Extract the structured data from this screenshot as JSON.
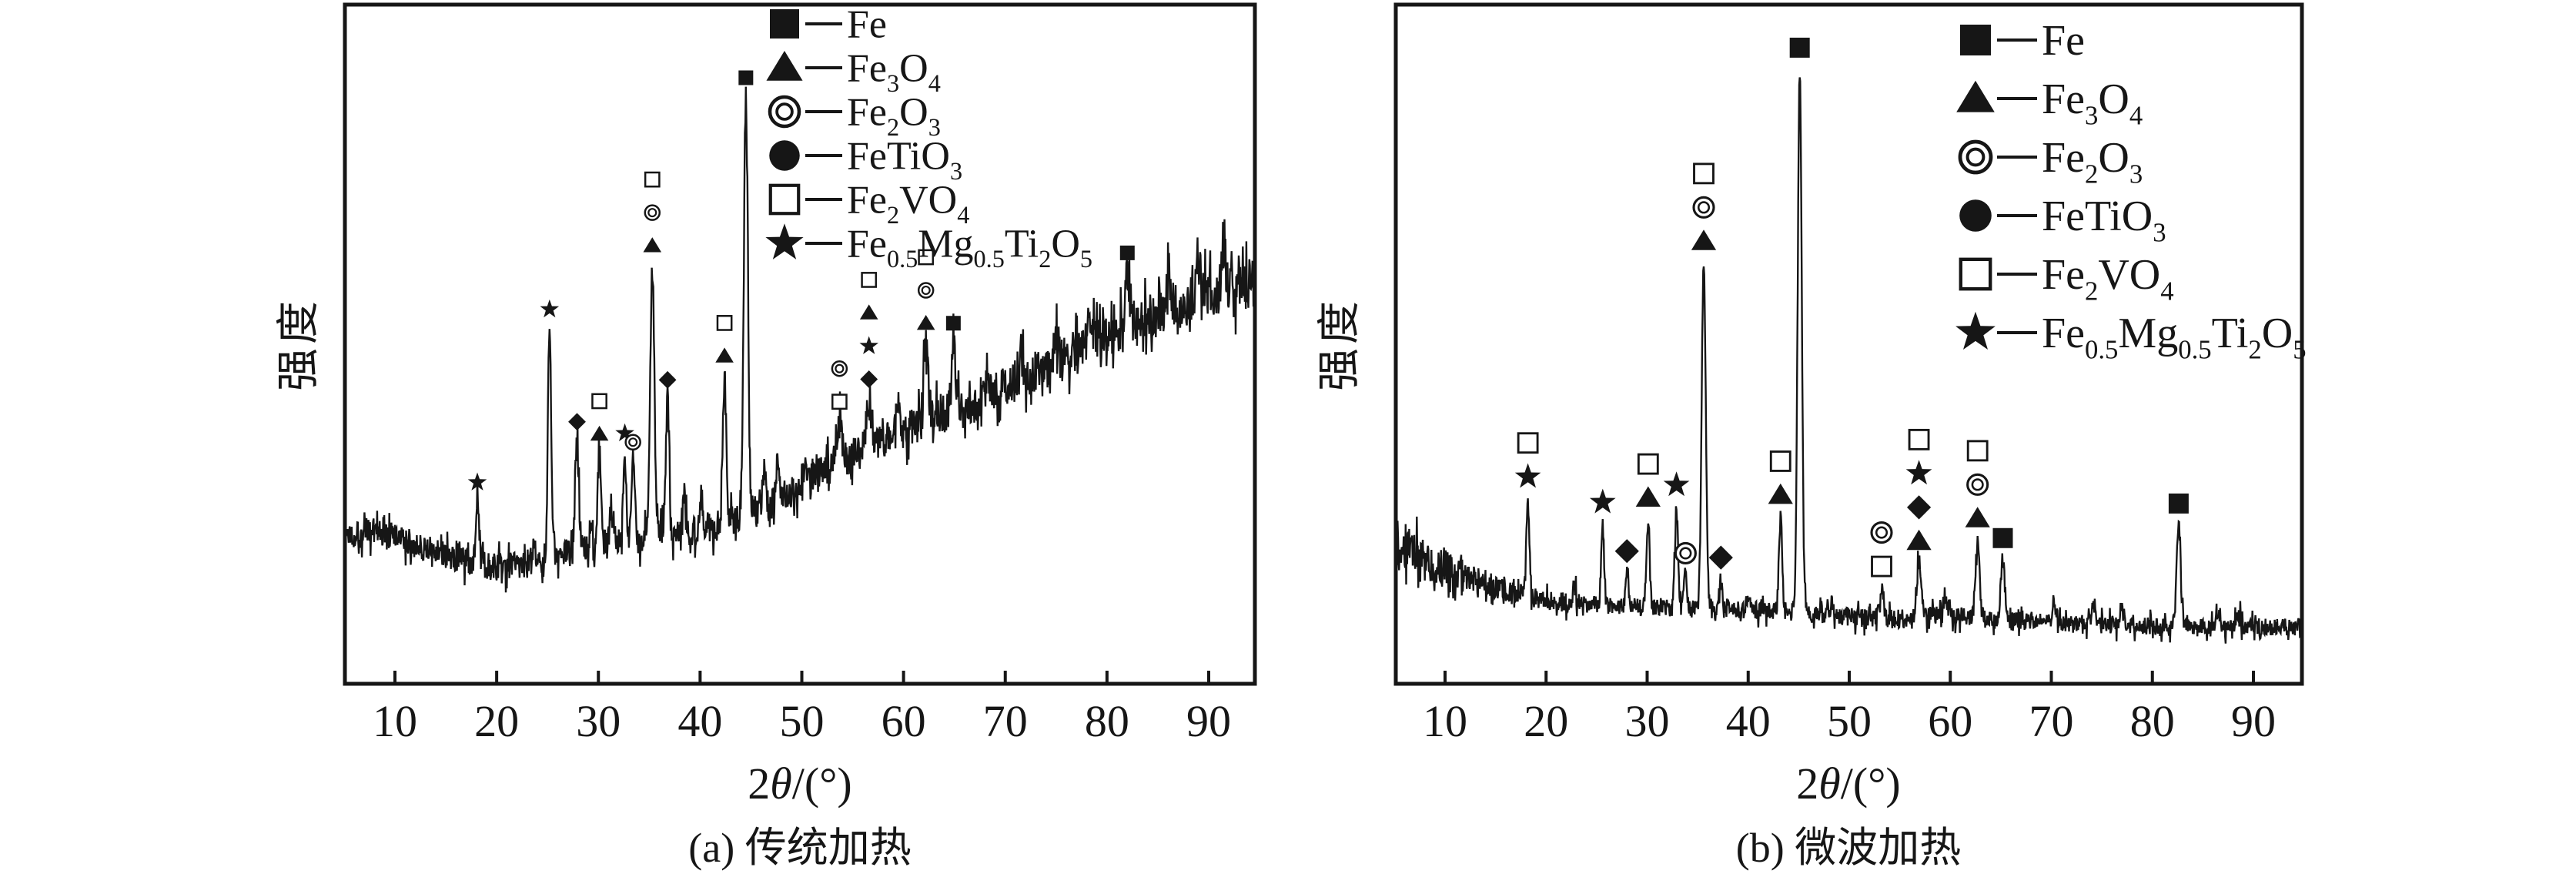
{
  "figure_type": "XRD patterns of roasted vanadium-titanium magnetite, two heating methods",
  "colors": {
    "ink": "#161616",
    "background": "#ffffff"
  },
  "legend_phases": [
    {
      "marker": "filled-square",
      "plot_marker": "filled-square",
      "label_plain": "Fe",
      "formula": [
        [
          "Fe",
          false
        ]
      ]
    },
    {
      "marker": "filled-triangle",
      "plot_marker": "filled-triangle",
      "label_plain": "Fe3O4",
      "formula": [
        [
          "Fe",
          false
        ],
        [
          "3",
          true
        ],
        [
          "O",
          false
        ],
        [
          "4",
          true
        ]
      ]
    },
    {
      "marker": "double-ring",
      "plot_marker": "double-ring",
      "label_plain": "Fe2O3",
      "formula": [
        [
          "Fe",
          false
        ],
        [
          "2",
          true
        ],
        [
          "O",
          false
        ],
        [
          "3",
          true
        ]
      ]
    },
    {
      "marker": "filled-circle",
      "plot_marker": "filled-diamond",
      "label_plain": "FeTiO3",
      "formula": [
        [
          "FeTiO",
          false
        ],
        [
          "3",
          true
        ]
      ]
    },
    {
      "marker": "open-square",
      "plot_marker": "open-square",
      "label_plain": "Fe2VO4",
      "formula": [
        [
          "Fe",
          false
        ],
        [
          "2",
          true
        ],
        [
          "VO",
          false
        ],
        [
          "4",
          true
        ]
      ]
    },
    {
      "marker": "filled-star",
      "plot_marker": "filled-star",
      "label_plain": "Fe0.5Mg0.5Ti2O5",
      "formula": [
        [
          "Fe",
          false
        ],
        [
          "0.5",
          true
        ],
        [
          "Mg",
          false
        ],
        [
          "0.5",
          true
        ],
        [
          "Ti",
          false
        ],
        [
          "2",
          true
        ],
        [
          "O",
          false
        ],
        [
          "5",
          true
        ]
      ]
    }
  ],
  "chart_data": [
    {
      "panel": "a",
      "type": "line",
      "title": "(a) 传统加热",
      "ylabel": "强度",
      "x_label": {
        "pre": "2",
        "theta": "θ",
        "post": "/(°)"
      },
      "x_ticks": [
        10,
        20,
        30,
        40,
        50,
        60,
        70,
        80,
        90
      ],
      "x_range": [
        5.1,
        94.5
      ],
      "y_axis": "intensity, arbitrary units, no tick labels",
      "grid": false,
      "legend_position": "inside top, right of center",
      "noise_seed": 1337,
      "background_anchors": [
        [
          5,
          0.22
        ],
        [
          8,
          0.225
        ],
        [
          11,
          0.21
        ],
        [
          14,
          0.195
        ],
        [
          17,
          0.18
        ],
        [
          20,
          0.172
        ],
        [
          23,
          0.178
        ],
        [
          26,
          0.19
        ],
        [
          29,
          0.2
        ],
        [
          32,
          0.208
        ],
        [
          35,
          0.215
        ],
        [
          38,
          0.22
        ],
        [
          41,
          0.232
        ],
        [
          44,
          0.245
        ],
        [
          47,
          0.262
        ],
        [
          50,
          0.295
        ],
        [
          53,
          0.32
        ],
        [
          56,
          0.345
        ],
        [
          59,
          0.365
        ],
        [
          62,
          0.385
        ],
        [
          65,
          0.402
        ],
        [
          68,
          0.42
        ],
        [
          71,
          0.445
        ],
        [
          74,
          0.462
        ],
        [
          77,
          0.49
        ],
        [
          80,
          0.515
        ],
        [
          83,
          0.53
        ],
        [
          86,
          0.55
        ],
        [
          89,
          0.57
        ],
        [
          92,
          0.582
        ],
        [
          94.5,
          0.59
        ]
      ],
      "noise_anchors": [
        [
          5,
          0.022
        ],
        [
          15,
          0.02
        ],
        [
          30,
          0.022
        ],
        [
          45,
          0.024
        ],
        [
          60,
          0.028
        ],
        [
          75,
          0.032
        ],
        [
          94.5,
          0.038
        ]
      ],
      "peaks": [
        {
          "two_theta": 18.1,
          "intensity": 0.09,
          "sigma": 0.15,
          "markers": [
            "filled-star"
          ],
          "phases": [
            "Fe0.5Mg0.5Ti2O5"
          ]
        },
        {
          "two_theta": 25.2,
          "intensity": 0.335,
          "sigma": 0.16,
          "markers": [
            "filled-star"
          ],
          "phases": [
            "Fe0.5Mg0.5Ti2O5"
          ]
        },
        {
          "two_theta": 27.9,
          "intensity": 0.16,
          "sigma": 0.18,
          "markers": [
            "filled-diamond"
          ],
          "phases": [
            "FeTiO3"
          ]
        },
        {
          "two_theta": 29.3,
          "intensity": 0.05,
          "sigma": 0.15,
          "markers": [],
          "phases": []
        },
        {
          "two_theta": 30.1,
          "intensity": 0.135,
          "sigma": 0.18,
          "markers": [
            "open-square",
            "filled-triangle"
          ],
          "phases": [
            "Fe2VO4",
            "Fe3O4"
          ]
        },
        {
          "two_theta": 31.3,
          "intensity": 0.06,
          "sigma": 0.15,
          "markers": [],
          "phases": []
        },
        {
          "two_theta": 32.6,
          "intensity": 0.13,
          "sigma": 0.16,
          "markers": [
            "filled-star"
          ],
          "phases": [
            "Fe0.5Mg0.5Ti2O5"
          ]
        },
        {
          "two_theta": 33.4,
          "intensity": 0.115,
          "sigma": 0.16,
          "markers": [
            "double-ring"
          ],
          "phases": [
            "Fe2O3"
          ]
        },
        {
          "two_theta": 35.3,
          "intensity": 0.4,
          "sigma": 0.2,
          "markers": [
            "open-square",
            "double-ring",
            "filled-triangle"
          ],
          "phases": [
            "Fe2VO4",
            "Fe2O3",
            "Fe3O4"
          ]
        },
        {
          "two_theta": 36.8,
          "intensity": 0.2,
          "sigma": 0.18,
          "markers": [
            "filled-diamond"
          ],
          "phases": [
            "FeTiO3"
          ]
        },
        {
          "two_theta": 38.4,
          "intensity": 0.06,
          "sigma": 0.15,
          "markers": [],
          "phases": []
        },
        {
          "two_theta": 40.1,
          "intensity": 0.05,
          "sigma": 0.15,
          "markers": [],
          "phases": []
        },
        {
          "two_theta": 42.4,
          "intensity": 0.215,
          "sigma": 0.18,
          "markers": [
            "open-square",
            "filled-triangle"
          ],
          "phases": [
            "Fe2VO4",
            "Fe3O4"
          ]
        },
        {
          "two_theta": 44.5,
          "intensity": 0.615,
          "sigma": 0.2,
          "markers": [
            "filled-square"
          ],
          "phases": [
            "Fe"
          ]
        },
        {
          "two_theta": 46.3,
          "intensity": 0.05,
          "sigma": 0.15,
          "markers": [],
          "phases": []
        },
        {
          "two_theta": 47.6,
          "intensity": 0.06,
          "sigma": 0.15,
          "markers": [],
          "phases": []
        },
        {
          "two_theta": 50.3,
          "intensity": 0.04,
          "sigma": 0.15,
          "markers": [],
          "phases": []
        },
        {
          "two_theta": 53.7,
          "intensity": 0.06,
          "sigma": 0.25,
          "markers": [
            "double-ring",
            "open-square"
          ],
          "phases": [
            "Fe2O3",
            "Fe2VO4"
          ]
        },
        {
          "two_theta": 56.6,
          "intensity": 0.07,
          "sigma": 0.25,
          "markers": [
            "open-square",
            "filled-triangle",
            "filled-star",
            "filled-diamond"
          ],
          "phases": [
            "Fe2VO4",
            "Fe3O4",
            "Fe0.5Mg0.5Ti2O5",
            "FeTiO3"
          ]
        },
        {
          "two_theta": 59.4,
          "intensity": 0.04,
          "sigma": 0.2,
          "markers": [],
          "phases": []
        },
        {
          "two_theta": 62.2,
          "intensity": 0.115,
          "sigma": 0.22,
          "markers": [
            "open-square",
            "double-ring",
            "filled-triangle"
          ],
          "phases": [
            "Fe2VO4",
            "Fe2O3",
            "Fe3O4"
          ]
        },
        {
          "two_theta": 64.9,
          "intensity": 0.1,
          "sigma": 0.2,
          "markers": [
            "filled-square"
          ],
          "phases": [
            "Fe"
          ]
        },
        {
          "two_theta": 68.0,
          "intensity": 0.035,
          "sigma": 0.2,
          "markers": [],
          "phases": []
        },
        {
          "two_theta": 71.5,
          "intensity": 0.04,
          "sigma": 0.2,
          "markers": [],
          "phases": []
        },
        {
          "two_theta": 75.0,
          "intensity": 0.045,
          "sigma": 0.2,
          "markers": [],
          "phases": []
        },
        {
          "two_theta": 78.3,
          "intensity": 0.05,
          "sigma": 0.2,
          "markers": [],
          "phases": []
        },
        {
          "two_theta": 82.0,
          "intensity": 0.08,
          "sigma": 0.22,
          "markers": [
            "filled-square"
          ],
          "phases": [
            "Fe"
          ]
        },
        {
          "two_theta": 86.0,
          "intensity": 0.04,
          "sigma": 0.2,
          "markers": [],
          "phases": []
        },
        {
          "two_theta": 89.0,
          "intensity": 0.045,
          "sigma": 0.2,
          "markers": [],
          "phases": []
        },
        {
          "two_theta": 91.5,
          "intensity": 0.05,
          "sigma": 0.2,
          "markers": [],
          "phases": []
        }
      ]
    },
    {
      "panel": "b",
      "type": "line",
      "title": "(b) 微波加热",
      "ylabel": "强度",
      "x_label": {
        "pre": "2",
        "theta": "θ",
        "post": "/(°)"
      },
      "x_ticks": [
        10,
        20,
        30,
        40,
        50,
        60,
        70,
        80,
        90
      ],
      "x_range": [
        5.1,
        94.8
      ],
      "y_axis": "intensity, arbitrary units, no tick labels",
      "grid": false,
      "legend_position": "inside top right",
      "noise_seed": 424242,
      "background_anchors": [
        [
          5,
          0.21
        ],
        [
          7,
          0.195
        ],
        [
          9,
          0.175
        ],
        [
          11,
          0.163
        ],
        [
          14,
          0.147
        ],
        [
          17,
          0.132
        ],
        [
          20,
          0.122
        ],
        [
          25,
          0.116
        ],
        [
          30,
          0.112
        ],
        [
          35,
          0.11
        ],
        [
          40,
          0.108
        ],
        [
          45,
          0.105
        ],
        [
          50,
          0.098
        ],
        [
          55,
          0.095
        ],
        [
          58,
          0.1
        ],
        [
          61,
          0.1
        ],
        [
          64,
          0.094
        ],
        [
          68,
          0.09
        ],
        [
          72,
          0.09
        ],
        [
          76,
          0.087
        ],
        [
          80,
          0.085
        ],
        [
          84,
          0.083
        ],
        [
          88,
          0.082
        ],
        [
          91,
          0.084
        ],
        [
          94.8,
          0.082
        ]
      ],
      "noise_anchors": [
        [
          5,
          0.035
        ],
        [
          10,
          0.028
        ],
        [
          15,
          0.016
        ],
        [
          25,
          0.013
        ],
        [
          40,
          0.013
        ],
        [
          55,
          0.014
        ],
        [
          70,
          0.013
        ],
        [
          94.8,
          0.013
        ]
      ],
      "peaks": [
        {
          "two_theta": 18.2,
          "intensity": 0.145,
          "sigma": 0.15,
          "markers": [
            "open-square",
            "filled-star"
          ],
          "phases": [
            "Fe2VO4",
            "Fe0.5Mg0.5Ti2O5"
          ]
        },
        {
          "two_theta": 22.8,
          "intensity": 0.025,
          "sigma": 0.15,
          "markers": [],
          "phases": []
        },
        {
          "two_theta": 25.6,
          "intensity": 0.12,
          "sigma": 0.15,
          "markers": [
            "filled-star"
          ],
          "phases": [
            "Fe0.5Mg0.5Ti2O5"
          ]
        },
        {
          "two_theta": 28.0,
          "intensity": 0.05,
          "sigma": 0.15,
          "markers": [
            "filled-diamond"
          ],
          "phases": [
            "FeTiO3"
          ]
        },
        {
          "two_theta": 30.1,
          "intensity": 0.13,
          "sigma": 0.16,
          "markers": [
            "open-square",
            "filled-triangle"
          ],
          "phases": [
            "Fe2VO4",
            "Fe3O4"
          ]
        },
        {
          "two_theta": 32.9,
          "intensity": 0.15,
          "sigma": 0.15,
          "markers": [
            "filled-star"
          ],
          "phases": [
            "Fe0.5Mg0.5Ti2O5"
          ]
        },
        {
          "two_theta": 33.8,
          "intensity": 0.05,
          "sigma": 0.15,
          "markers": [
            "double-ring"
          ],
          "phases": [
            "Fe2O3"
          ]
        },
        {
          "two_theta": 35.6,
          "intensity": 0.51,
          "sigma": 0.2,
          "markers": [
            "open-square",
            "double-ring",
            "filled-triangle"
          ],
          "phases": [
            "Fe2VO4",
            "Fe2O3",
            "Fe3O4"
          ]
        },
        {
          "two_theta": 37.3,
          "intensity": 0.045,
          "sigma": 0.15,
          "markers": [
            "filled-diamond"
          ],
          "phases": [
            "FeTiO3"
          ]
        },
        {
          "two_theta": 40.0,
          "intensity": 0.02,
          "sigma": 0.15,
          "markers": [],
          "phases": []
        },
        {
          "two_theta": 43.2,
          "intensity": 0.14,
          "sigma": 0.16,
          "markers": [
            "open-square",
            "filled-triangle"
          ],
          "phases": [
            "Fe2VO4",
            "Fe3O4"
          ]
        },
        {
          "two_theta": 45.1,
          "intensity": 0.8,
          "sigma": 0.2,
          "markers": [
            "filled-square"
          ],
          "phases": [
            "Fe"
          ]
        },
        {
          "two_theta": 48.3,
          "intensity": 0.02,
          "sigma": 0.15,
          "markers": [],
          "phases": []
        },
        {
          "two_theta": 53.2,
          "intensity": 0.045,
          "sigma": 0.2,
          "markers": [
            "double-ring",
            "open-square"
          ],
          "phases": [
            "Fe2O3",
            "Fe2VO4"
          ]
        },
        {
          "two_theta": 56.9,
          "intensity": 0.08,
          "sigma": 0.22,
          "markers": [
            "open-square",
            "filled-star",
            "filled-diamond",
            "filled-triangle"
          ],
          "phases": [
            "Fe2VO4",
            "Fe0.5Mg0.5Ti2O5",
            "FeTiO3",
            "Fe3O4"
          ]
        },
        {
          "two_theta": 59.5,
          "intensity": 0.03,
          "sigma": 0.2,
          "markers": [],
          "phases": []
        },
        {
          "two_theta": 62.7,
          "intensity": 0.115,
          "sigma": 0.2,
          "markers": [
            "open-square",
            "double-ring",
            "filled-triangle"
          ],
          "phases": [
            "Fe2VO4",
            "Fe2O3",
            "Fe3O4"
          ]
        },
        {
          "two_theta": 65.2,
          "intensity": 0.09,
          "sigma": 0.2,
          "markers": [
            "filled-square"
          ],
          "phases": [
            "Fe"
          ]
        },
        {
          "two_theta": 70.3,
          "intensity": 0.025,
          "sigma": 0.2,
          "markers": [],
          "phases": []
        },
        {
          "two_theta": 74.2,
          "intensity": 0.03,
          "sigma": 0.2,
          "markers": [],
          "phases": []
        },
        {
          "two_theta": 77.0,
          "intensity": 0.02,
          "sigma": 0.2,
          "markers": [],
          "phases": []
        },
        {
          "two_theta": 82.6,
          "intensity": 0.15,
          "sigma": 0.2,
          "markers": [
            "filled-square"
          ],
          "phases": [
            "Fe"
          ]
        },
        {
          "two_theta": 86.5,
          "intensity": 0.02,
          "sigma": 0.2,
          "markers": [],
          "phases": []
        },
        {
          "two_theta": 88.5,
          "intensity": 0.025,
          "sigma": 0.2,
          "markers": [],
          "phases": []
        }
      ]
    }
  ]
}
